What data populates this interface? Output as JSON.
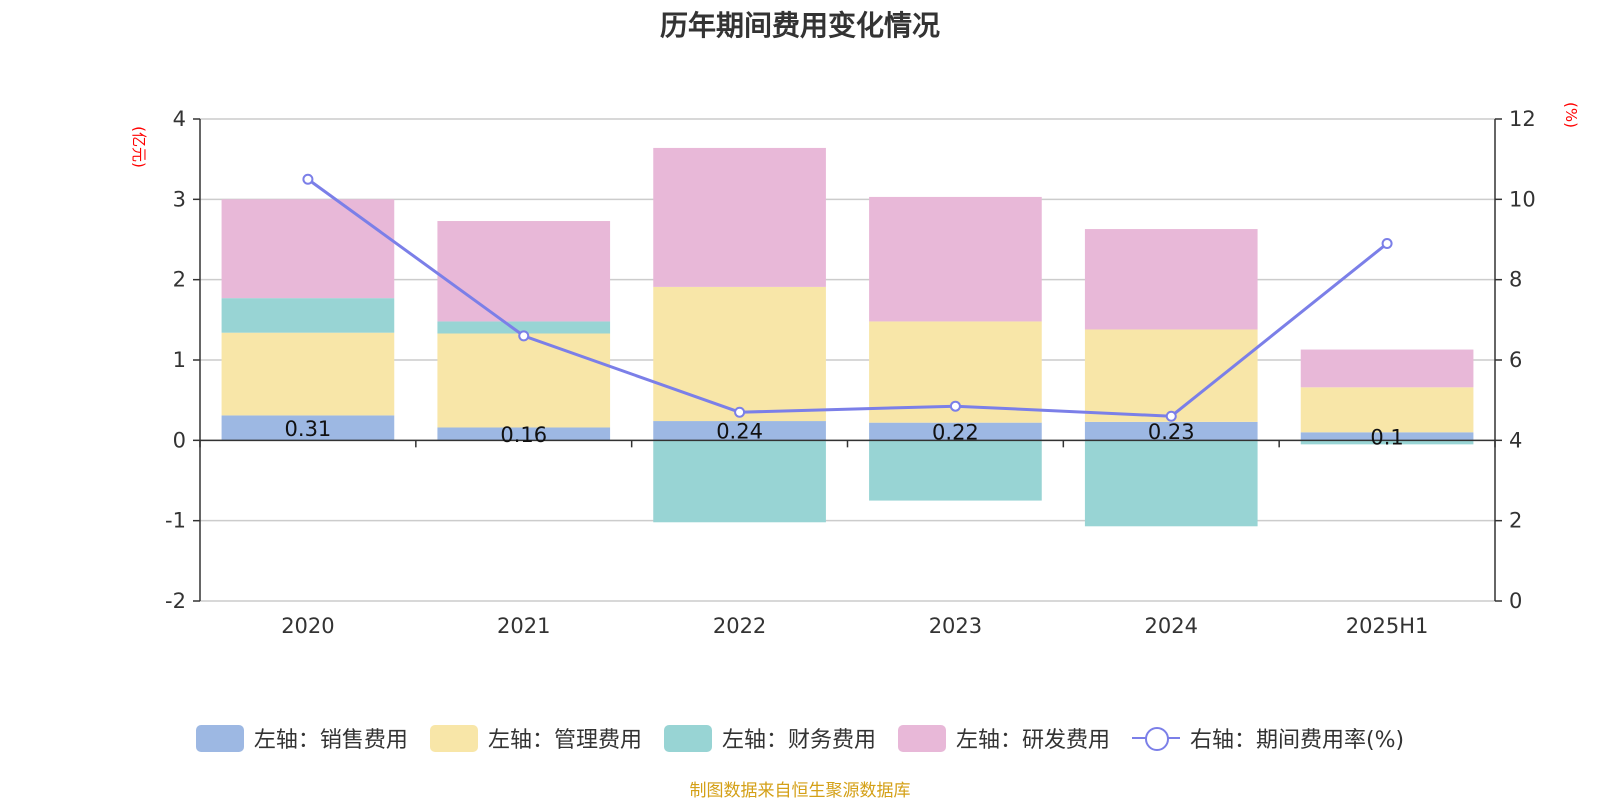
{
  "chart_data": {
    "type": "bar",
    "title": "历年期间费用变化情况",
    "categories": [
      "2020",
      "2021",
      "2022",
      "2023",
      "2024",
      "2025H1"
    ],
    "stacked": true,
    "left_axis": {
      "unit": "(亿元)",
      "range": [
        -2,
        4
      ],
      "ticks": [
        "4",
        "3",
        "2",
        "1",
        "0",
        "-1",
        "-2"
      ]
    },
    "right_axis": {
      "unit": "(%)",
      "range": [
        0,
        12
      ],
      "ticks": [
        "12",
        "10",
        "8",
        "6",
        "4",
        "2",
        "0"
      ]
    },
    "grid": true,
    "series": [
      {
        "name": "左轴：销售费用",
        "type": "bar",
        "axis": "left",
        "color": "#9db8e3",
        "values": [
          0.31,
          0.16,
          0.24,
          0.22,
          0.23,
          0.1
        ],
        "labels": [
          "0.31",
          "0.16",
          "0.24",
          "0.22",
          "0.23",
          "0.1"
        ]
      },
      {
        "name": "左轴：管理费用",
        "type": "bar",
        "axis": "left",
        "color": "#f8e6a8",
        "values": [
          1.03,
          1.17,
          1.67,
          1.26,
          1.15,
          0.56
        ]
      },
      {
        "name": "左轴：财务费用",
        "type": "bar",
        "axis": "left",
        "color": "#98d4d4",
        "values": [
          0.43,
          0.15,
          -1.02,
          -0.75,
          -1.07,
          -0.05
        ]
      },
      {
        "name": "左轴：研发费用",
        "type": "bar",
        "axis": "left",
        "color": "#e8b8d8",
        "values": [
          1.23,
          1.25,
          1.73,
          1.55,
          1.25,
          0.47
        ]
      },
      {
        "name": "右轴：期间费用率(%)",
        "type": "line",
        "axis": "right",
        "color": "#7b7fe8",
        "values": [
          10.5,
          6.6,
          4.7,
          4.85,
          4.6,
          8.9
        ]
      }
    ],
    "legend_position": "bottom"
  },
  "source": "制图数据来自恒生聚源数据库"
}
